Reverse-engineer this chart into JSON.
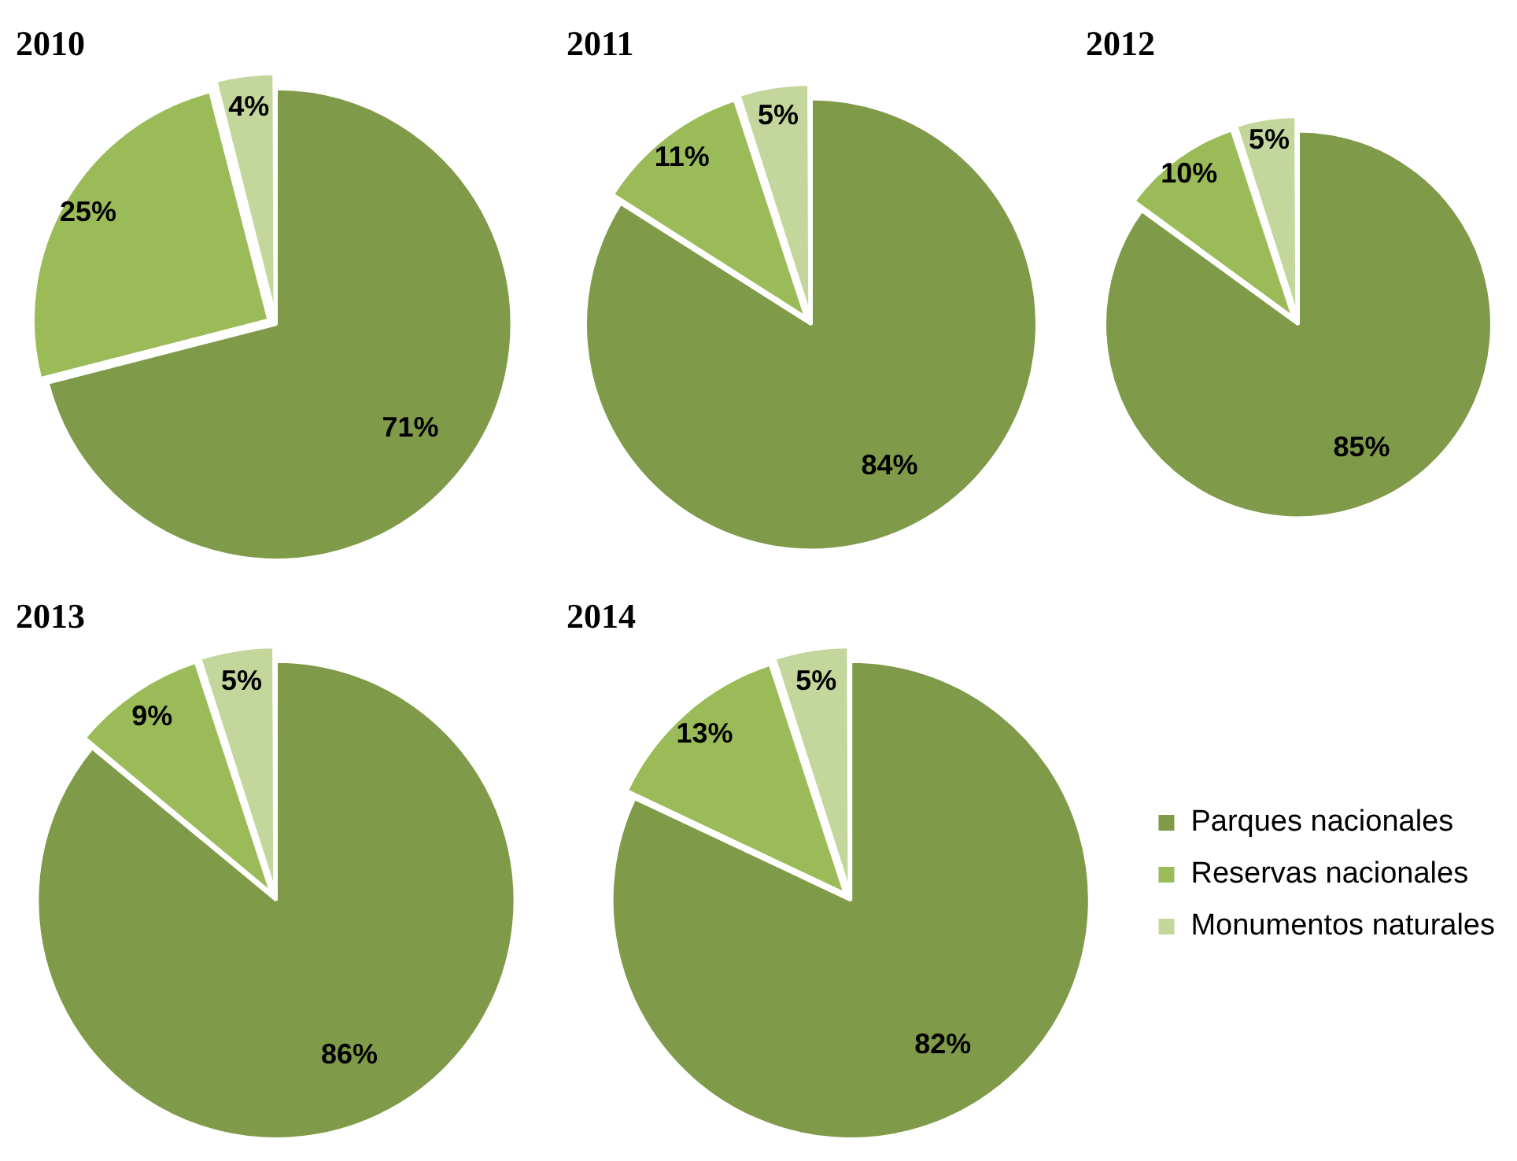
{
  "chart_data": [
    {
      "type": "pie",
      "title": "2010",
      "categories": [
        null,
        null,
        null
      ],
      "values": [
        71,
        25,
        4
      ],
      "colors": [
        "#7f9a48",
        "#9bbb59",
        "#c3d69b"
      ],
      "value_labels": [
        "71%",
        "25%",
        "4%"
      ]
    },
    {
      "type": "pie",
      "title": "2011",
      "categories": [
        null,
        null,
        null
      ],
      "values": [
        84,
        11,
        5
      ],
      "colors": [
        "#7f9a48",
        "#9bbb59",
        "#c3d69b"
      ],
      "value_labels": [
        "84%",
        "11%",
        "5%"
      ]
    },
    {
      "type": "pie",
      "title": "2012",
      "categories": [
        null,
        null,
        null
      ],
      "values": [
        85,
        10,
        5
      ],
      "colors": [
        "#7f9a48",
        "#9bbb59",
        "#c3d69b"
      ],
      "value_labels": [
        "85%",
        "10%",
        "5%"
      ]
    },
    {
      "type": "pie",
      "title": "2013",
      "categories": [
        null,
        null,
        null
      ],
      "values": [
        86,
        9,
        5
      ],
      "colors": [
        "#7f9a48",
        "#9bbb59",
        "#c3d69b"
      ],
      "value_labels": [
        "86%",
        "9%",
        "5%"
      ]
    },
    {
      "type": "pie",
      "title": "2014",
      "categories": [
        "Parques nacionales",
        "Reservas nacionales",
        "Monumentos naturales"
      ],
      "values": [
        82,
        13,
        5
      ],
      "colors": [
        "#7f9a48",
        "#9bbb59",
        "#c3d69b"
      ],
      "value_labels": [
        "82%",
        "13%",
        "5%"
      ],
      "legend": "right"
    }
  ]
}
